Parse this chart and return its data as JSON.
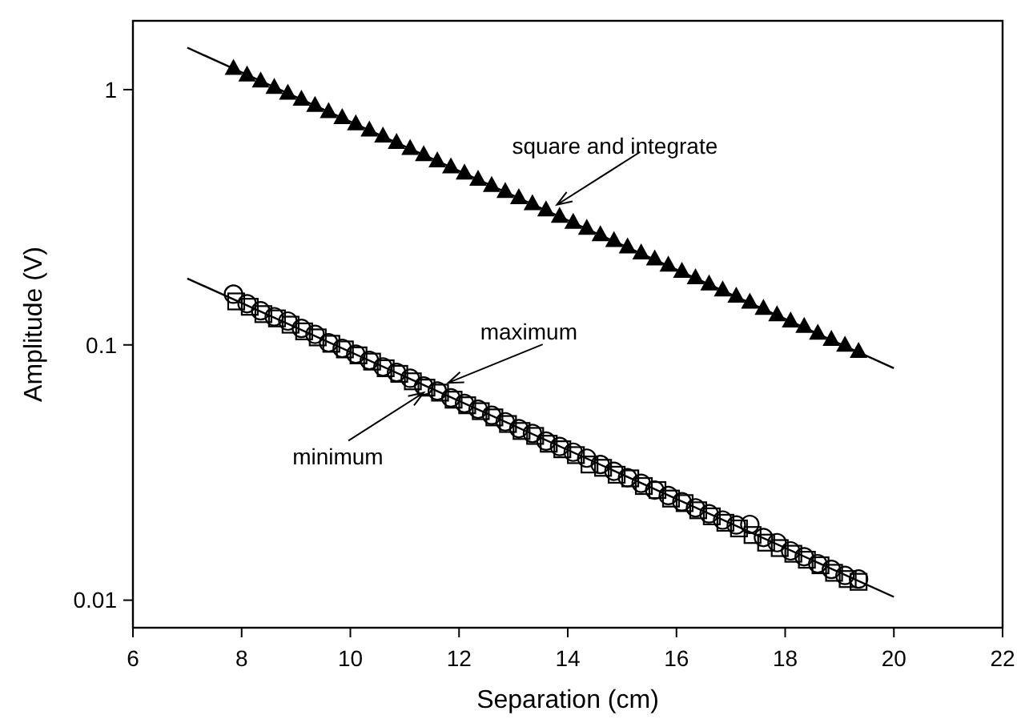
{
  "chart_data": {
    "type": "scatter",
    "xlabel": "Separation (cm)",
    "ylabel": "Amplitude (V)",
    "log": "y",
    "xlim": [
      6,
      22
    ],
    "xticks": [
      6,
      8,
      10,
      12,
      14,
      16,
      18,
      20,
      22
    ],
    "ylim": [
      0.0078,
      1.86
    ],
    "yticks": [
      0.01,
      0.1,
      1
    ],
    "grid": false,
    "series": [
      {
        "marker": "triangle",
        "color": "#000000",
        "x": [
          7.85,
          8.1,
          8.35,
          8.6,
          8.85,
          9.1,
          9.35,
          9.6,
          9.85,
          10.1,
          10.35,
          10.6,
          10.85,
          11.1,
          11.35,
          11.6,
          11.85,
          12.1,
          12.35,
          12.6,
          12.85,
          13.1,
          13.35,
          13.6,
          13.85,
          14.1,
          14.35,
          14.6,
          14.85,
          15.1,
          15.35,
          15.6,
          15.85,
          16.1,
          16.35,
          16.6,
          16.85,
          17.1,
          17.35,
          17.6,
          17.85,
          18.1,
          18.35,
          18.6,
          18.85,
          19.1,
          19.35
        ],
        "values": [
          1.21,
          1.14,
          1.08,
          1.02,
          0.968,
          0.916,
          0.866,
          0.82,
          0.776,
          0.734,
          0.694,
          0.657,
          0.621,
          0.588,
          0.556,
          0.526,
          0.498,
          0.471,
          0.445,
          0.421,
          0.399,
          0.377,
          0.357,
          0.338,
          0.319,
          0.302,
          0.286,
          0.27,
          0.256,
          0.242,
          0.229,
          0.217,
          0.205,
          0.194,
          0.183,
          0.173,
          0.164,
          0.155,
          0.147,
          0.139,
          0.131,
          0.124,
          0.118,
          0.111,
          0.105,
          0.0996,
          0.0942
        ]
      },
      {
        "marker": "square",
        "color": "#000000",
        "x": [
          7.9,
          8.15,
          8.4,
          8.65,
          8.9,
          9.15,
          9.4,
          9.65,
          9.9,
          10.15,
          10.4,
          10.65,
          10.9,
          11.15,
          11.4,
          11.65,
          11.9,
          12.15,
          12.4,
          12.65,
          12.9,
          13.15,
          13.4,
          13.65,
          13.9,
          14.15,
          14.4,
          14.65,
          14.9,
          15.15,
          15.4,
          15.65,
          15.9,
          16.15,
          16.4,
          16.65,
          16.9,
          17.15,
          17.4,
          17.65,
          17.9,
          18.15,
          18.4,
          18.65,
          18.9,
          19.15,
          19.35
        ],
        "values": [
          0.148,
          0.141,
          0.132,
          0.127,
          0.12,
          0.113,
          0.107,
          0.101,
          0.096,
          0.091,
          0.086,
          0.081,
          0.077,
          0.072,
          0.068,
          0.065,
          0.061,
          0.058,
          0.055,
          0.052,
          0.049,
          0.046,
          0.044,
          0.041,
          0.039,
          0.037,
          0.034,
          0.033,
          0.031,
          0.03,
          0.028,
          0.027,
          0.025,
          0.024,
          0.0225,
          0.0213,
          0.0201,
          0.0191,
          0.018,
          0.0168,
          0.016,
          0.0152,
          0.0144,
          0.0137,
          0.0128,
          0.0121,
          0.0118
        ]
      },
      {
        "marker": "circle",
        "color": "#000000",
        "x": [
          7.85,
          8.1,
          8.35,
          8.6,
          8.85,
          9.1,
          9.35,
          9.6,
          9.85,
          10.1,
          10.35,
          10.6,
          10.85,
          11.1,
          11.35,
          11.6,
          11.85,
          12.1,
          12.35,
          12.6,
          12.85,
          13.1,
          13.35,
          13.6,
          13.85,
          14.1,
          14.35,
          14.6,
          14.85,
          15.1,
          15.35,
          15.6,
          15.85,
          16.1,
          16.35,
          16.6,
          16.85,
          17.1,
          17.35,
          17.6,
          17.85,
          18.1,
          18.35,
          18.6,
          18.85,
          19.1,
          19.35
        ],
        "values": [
          0.158,
          0.145,
          0.136,
          0.129,
          0.124,
          0.116,
          0.11,
          0.102,
          0.097,
          0.092,
          0.087,
          0.082,
          0.078,
          0.074,
          0.069,
          0.066,
          0.062,
          0.059,
          0.056,
          0.053,
          0.05,
          0.047,
          0.045,
          0.042,
          0.04,
          0.038,
          0.036,
          0.034,
          0.032,
          0.0302,
          0.0287,
          0.027,
          0.0257,
          0.0243,
          0.023,
          0.0218,
          0.0206,
          0.0197,
          0.0198,
          0.0176,
          0.0168,
          0.0156,
          0.0148,
          0.0139,
          0.0132,
          0.0125,
          0.0121
        ]
      },
      {
        "type": "line",
        "marker": "none",
        "color": "#000000",
        "x": [
          7,
          20
        ],
        "values": [
          1.46,
          0.081
        ]
      },
      {
        "type": "line",
        "marker": "none",
        "color": "#000000",
        "x": [
          7,
          20
        ],
        "values": [
          0.182,
          0.0103
        ]
      }
    ],
    "annotations": [
      {
        "text": "square and integrate",
        "x": 13.8,
        "y": 0.354
      },
      {
        "text": "maximum",
        "x": 11.8,
        "y": 0.071
      },
      {
        "text": "minimum",
        "x": 11.35,
        "y": 0.065
      }
    ]
  }
}
